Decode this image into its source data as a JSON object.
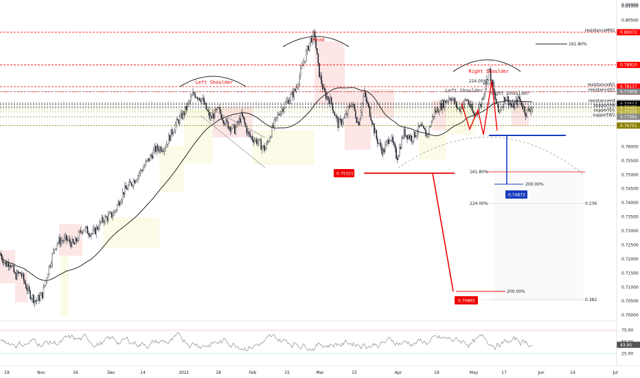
{
  "chart_data": {
    "type": "candlestick",
    "subtitle": "",
    "price_axis": {
      "ylim": [
        0.6982,
        0.8122
      ],
      "tick_values": [
        "0.70000",
        "0.70500",
        "0.71000",
        "0.71500",
        "0.72000",
        "0.72500",
        "0.73000",
        "0.73500",
        "0.74000",
        "0.74500",
        "0.75000",
        "0.75500",
        "0.76000",
        "0.80500",
        "0.81000"
      ],
      "top_label": "0.00000"
    },
    "time_axis": {
      "labels": [
        "19",
        "Nov",
        "16",
        "Dec",
        "14",
        "2021",
        "18",
        "Feb",
        "15",
        "Mar",
        "15",
        "Apr",
        "19",
        "May",
        "17",
        "Jun",
        "14",
        "Jul"
      ]
    },
    "levels": [
      {
        "name": "resistanceMN1",
        "value": 0.80072,
        "label": "0.80072",
        "color": "#ff0000"
      },
      {
        "name": "resistanceW1",
        "value": 0.78137,
        "label": "0.78137",
        "color": "#ff0000"
      },
      {
        "name": "",
        "value": 0.7891,
        "label": "0.78910",
        "color": "#ff0000"
      },
      {
        "name": "resistanceD1",
        "value": 0.77958,
        "label": "0.77958",
        "color": "#ff0000"
      },
      {
        "name": "",
        "value": 0.77958,
        "label": "0.77958",
        "color": "#888888"
      },
      {
        "name": "resistanceH4",
        "value": 0.77558,
        "label": "0.77558",
        "color": "#888888"
      },
      {
        "name": "",
        "value": 0.77517,
        "label": "0.77517",
        "color": "#000000"
      },
      {
        "name": "supportH4",
        "value": 0.77405,
        "label": "0.77405",
        "color": "#000000"
      },
      {
        "name": "",
        "value": 0.7733,
        "label": "0.77330",
        "color": "#b8b03a"
      },
      {
        "name": "supportD1",
        "value": 0.77235,
        "label": "0.77235",
        "color": "#b8b03a"
      },
      {
        "name": "supportW1",
        "value": 0.77062,
        "label": "0.77062",
        "color": "#b8b03a"
      },
      {
        "name": "",
        "value": 0.77062,
        "label": "0.77062",
        "color": "#888888"
      },
      {
        "name": "",
        "value": 0.76751,
        "label": "0.76751",
        "color": "#8b8000"
      }
    ],
    "annotations": {
      "left_shoulder": "Left Shoulder",
      "head": "Head",
      "right_shoulder": "Right Shoulder",
      "small_left_shoulder": "Left Shoulder",
      "small_head": "Head",
      "small_right_shoulder": "Right Shoulder",
      "fib_161_top": "161.80%",
      "fib_224_top": "224.00%",
      "fib_161_mid": "161.80%",
      "fib_200_mid": "200.00%",
      "fib_224_low": "224.00%",
      "fib_236": "0.236",
      "fib_200_low": "200.00%",
      "fib_382": "0.382",
      "neckline_price": "0.75321",
      "target_blue": "0.74872",
      "target_red": "0.70865"
    },
    "rsi": {
      "tick_values": [
        "75.00",
        "50.00",
        "25.00"
      ],
      "current": "43.95",
      "range": [
        25,
        75
      ]
    }
  }
}
